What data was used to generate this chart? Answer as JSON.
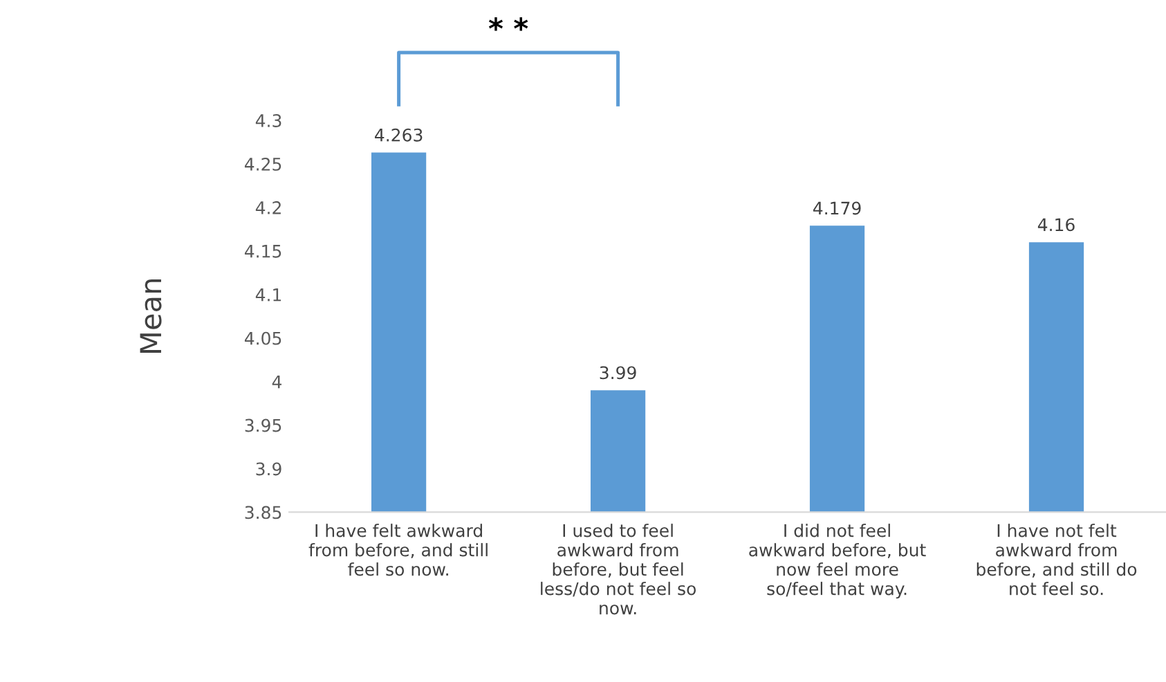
{
  "chart_data": {
    "type": "bar",
    "ylabel": "Mean",
    "categories": [
      "I have felt awkward\nfrom before, and still\nfeel so now.",
      "I used to feel\nawkward from\nbefore, but feel\nless/do not feel so\nnow.",
      "I did not feel\nawkward before, but\nnow feel more\nso/feel that way.",
      "I have not felt\nawkward from\nbefore, and still do\nnot feel so."
    ],
    "values": [
      4.263,
      3.99,
      4.179,
      4.16
    ],
    "color": "#5b9bd5",
    "ylim": [
      3.85,
      4.3
    ],
    "yticks": [
      3.85,
      3.9,
      3.95,
      4,
      4.05,
      4.1,
      4.15,
      4.2,
      4.25,
      4.3
    ],
    "value_labels": [
      "4.263",
      "3.99",
      "4.179",
      "4.16"
    ],
    "annotations": [
      "* *"
    ],
    "grid": false,
    "legend": false
  }
}
